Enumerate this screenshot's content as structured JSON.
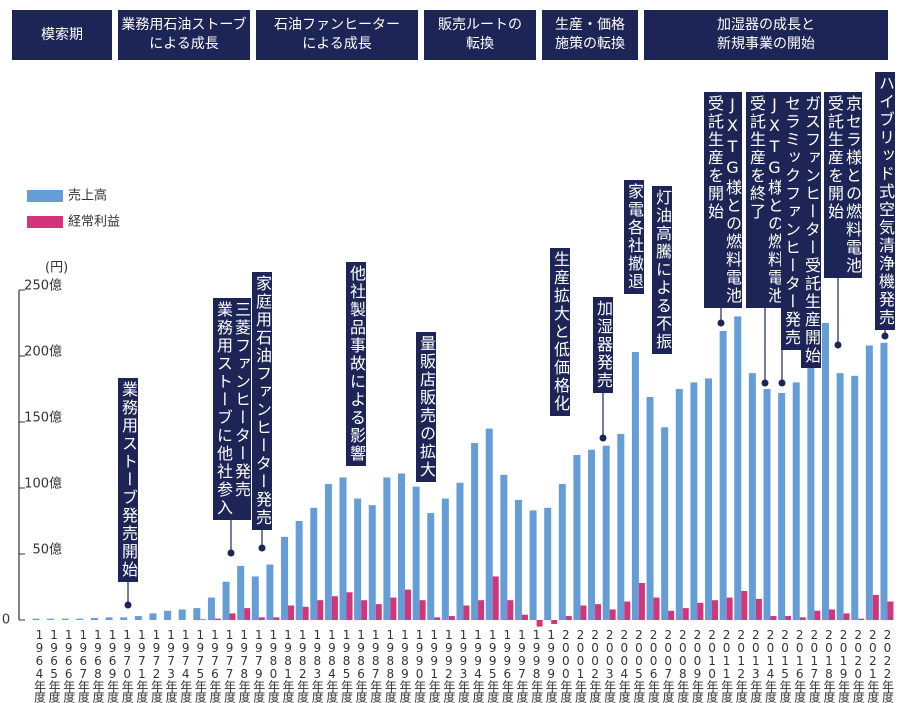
{
  "chart_data": {
    "type": "bar",
    "phases": [
      [
        "模索期"
      ],
      [
        "業務用石油ストーブ",
        "による成長"
      ],
      [
        "石油ファンヒーター",
        "による成長"
      ],
      [
        "販売ルートの",
        "転換"
      ],
      [
        "生産・価格",
        "施策の転換"
      ],
      [
        "加湿器の成長と",
        "新規事業の開始"
      ]
    ],
    "y_unit": "(円)",
    "categories": [
      "1964年度",
      "1965年度",
      "1966年度",
      "1967年度",
      "1968年度",
      "1969年度",
      "1970年度",
      "1971年度",
      "1972年度",
      "1973年度",
      "1974年度",
      "1975年度",
      "1976年度",
      "1977年度",
      "1978年度",
      "1979年度",
      "1980年度",
      "1981年度",
      "1982年度",
      "1983年度",
      "1984年度",
      "1985年度",
      "1986年度",
      "1987年度",
      "1988年度",
      "1989年度",
      "1990年度",
      "1991年度",
      "1992年度",
      "1993年度",
      "1994年度",
      "1995年度",
      "1996年度",
      "1997年度",
      "1998年度",
      "1999年度",
      "2000年度",
      "2001年度",
      "2002年度",
      "2003年度",
      "2004年度",
      "2005年度",
      "2006年度",
      "2007年度",
      "2008年度",
      "2009年度",
      "2010年度",
      "2011年度",
      "2012年度",
      "2013年度",
      "2014年度",
      "2015年度",
      "2016年度",
      "2017年度",
      "2018年度",
      "2019年度",
      "2020年度",
      "2021年度",
      "2022年度"
    ],
    "series": [
      {
        "name": "売上高",
        "color": "#659ed6",
        "values": [
          1,
          1,
          1,
          1,
          1.5,
          2,
          2,
          3,
          5,
          7,
          8,
          9,
          17,
          29,
          41,
          33,
          42,
          63,
          75,
          85,
          103,
          108,
          92,
          87,
          108,
          111,
          101,
          81,
          92,
          104,
          134,
          145,
          110,
          91,
          83,
          85,
          103,
          125,
          129,
          132,
          141,
          203,
          169,
          146,
          175,
          180,
          183,
          219,
          230,
          187,
          175,
          172,
          180,
          197,
          225,
          187,
          185,
          208,
          210
        ]
      },
      {
        "name": "経常利益",
        "color": "#d2357a",
        "values": [
          0,
          0,
          0,
          0,
          0,
          0,
          0,
          0,
          0,
          0,
          0,
          0.5,
          1,
          5,
          9,
          2,
          2,
          11,
          10,
          15,
          18,
          21,
          15,
          12,
          17,
          23,
          15,
          2,
          3,
          11,
          15,
          33,
          15,
          4,
          -5,
          -3,
          3,
          11,
          12,
          8,
          14,
          28,
          17,
          7,
          9,
          13,
          15,
          17,
          22,
          16,
          3,
          3,
          2,
          7,
          8,
          5,
          1,
          19,
          14
        ]
      }
    ],
    "ylim": [
      0,
      250
    ],
    "yticks": [
      0,
      {
        "value": 50,
        "label": "50億"
      },
      {
        "value": 100,
        "label": "100億"
      },
      {
        "value": 150,
        "label": "150億"
      },
      {
        "value": 200,
        "label": "200億"
      },
      {
        "value": 250,
        "label": "250億"
      }
    ],
    "annotations": [
      [
        "業務用ストーブ発売開始"
      ],
      [
        "三菱ファンヒーター発売",
        "業務用ストーブに他社参入"
      ],
      [
        "家庭用石油ファンヒーター発売"
      ],
      [
        "他社製品事故による影響"
      ],
      [
        "量販店販売の拡大"
      ],
      [
        "生産拡大と低価格化"
      ],
      [
        "加湿器発売"
      ],
      [
        "家電各社撤退"
      ],
      [
        "灯油高騰による不振"
      ],
      [
        "JXTG様との燃料電池",
        "受託生産を開始"
      ],
      [
        "JXTG様との燃料電池",
        "受託生産を終了"
      ],
      [
        "セラミックファンヒーター発売"
      ],
      [
        "ガスファンヒーター受託生産開始"
      ],
      [
        "京セラ様との燃料電池",
        "受託生産を開始"
      ],
      [
        "ハイブリッド式空気清浄機発売"
      ]
    ]
  }
}
